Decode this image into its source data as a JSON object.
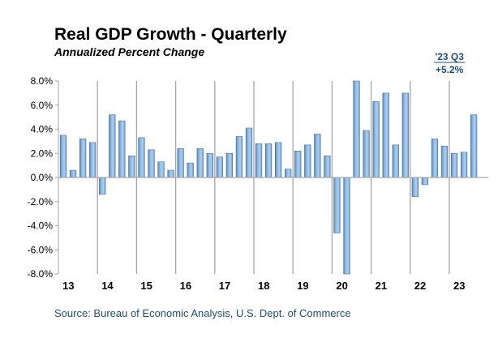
{
  "chart_data": {
    "type": "bar",
    "title": "Real GDP Growth - Quarterly",
    "subtitle": "Annualized  Percent Change",
    "source": "Source: Bureau of Economic Analysis, U.S. Dept. of Commerce",
    "ylim": [
      -8,
      8
    ],
    "yticks": [
      "8.0%",
      "6.0%",
      "4.0%",
      "2.0%",
      "0.0%",
      "-2.0%",
      "-4.0%",
      "-6.0%",
      "-8.0%"
    ],
    "year_labels": [
      "13",
      "14",
      "15",
      "16",
      "17",
      "18",
      "19",
      "20",
      "21",
      "22",
      "23"
    ],
    "categories": [
      "13 Q1",
      "13 Q2",
      "13 Q3",
      "13 Q4",
      "14 Q1",
      "14 Q2",
      "14 Q3",
      "14 Q4",
      "15 Q1",
      "15 Q2",
      "15 Q3",
      "15 Q4",
      "16 Q1",
      "16 Q2",
      "16 Q3",
      "16 Q4",
      "17 Q1",
      "17 Q2",
      "17 Q3",
      "17 Q4",
      "18 Q1",
      "18 Q2",
      "18 Q3",
      "18 Q4",
      "19 Q1",
      "19 Q2",
      "19 Q3",
      "19 Q4",
      "20 Q1",
      "20 Q2",
      "20 Q3",
      "20 Q4",
      "21 Q1",
      "21 Q2",
      "21 Q3",
      "21 Q4",
      "22 Q1",
      "22 Q2",
      "22 Q3",
      "22 Q4",
      "23 Q1",
      "23 Q2",
      "23 Q3"
    ],
    "values": [
      3.5,
      0.6,
      3.2,
      2.9,
      -1.4,
      5.2,
      4.7,
      1.8,
      3.3,
      2.3,
      1.3,
      0.6,
      2.4,
      1.2,
      2.4,
      2.0,
      1.7,
      2.0,
      3.4,
      4.1,
      2.8,
      2.8,
      2.9,
      0.7,
      2.2,
      2.7,
      3.6,
      1.8,
      -4.6,
      -8.0,
      8.0,
      3.9,
      6.3,
      7.0,
      2.7,
      7.0,
      -1.6,
      -0.6,
      3.2,
      2.6,
      2.0,
      2.1,
      5.2
    ],
    "annotation": {
      "line1": "'23 Q3",
      "line2": "+5.2%"
    },
    "grid": "vertical year separators",
    "colors": {
      "bar": "#8fbde8",
      "bar_edge": "#4a6f96",
      "annotation": "#1f4e79"
    }
  }
}
